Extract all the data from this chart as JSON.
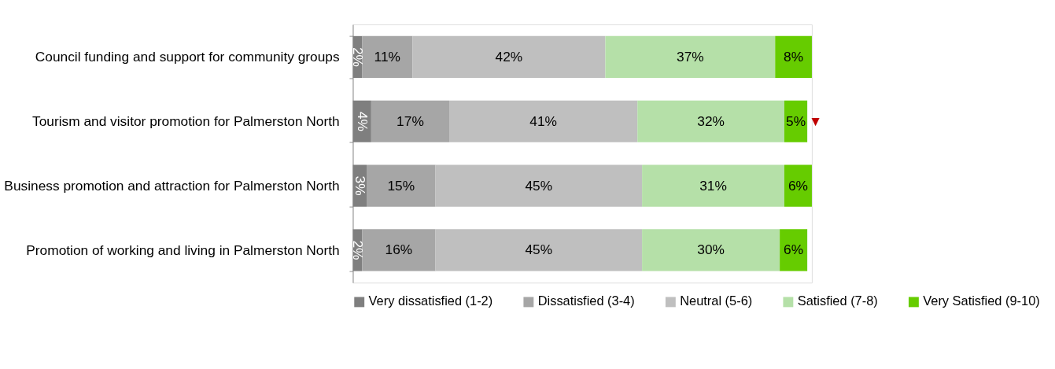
{
  "chart_data": {
    "type": "bar",
    "orientation": "horizontal",
    "stacked": true,
    "legend": "bottom",
    "grid": false,
    "tick_labels": "y",
    "categories": [
      "Council funding and support for community groups",
      "Tourism and visitor promotion for Palmerston North",
      "Business promotion and attraction for Palmerston North",
      "Promotion of working and living in Palmerston North"
    ],
    "series": [
      {
        "name": "Very dissatisfied (1-2)",
        "color": "#7f7f7f",
        "values": [
          2,
          4,
          3,
          2
        ],
        "value_labels": [
          "2%",
          "4%",
          "3%",
          "2%"
        ]
      },
      {
        "name": "Dissatisfied (3-4)",
        "color": "#a6a6a6",
        "values": [
          11,
          17,
          15,
          16
        ],
        "value_labels": [
          "11%",
          "17%",
          "15%",
          "16%"
        ]
      },
      {
        "name": "Neutral (5-6)",
        "color": "#bfbfbf",
        "values": [
          42,
          41,
          45,
          45
        ],
        "value_labels": [
          "42%",
          "41%",
          "45%",
          "45%"
        ]
      },
      {
        "name": "Satisfied (7-8)",
        "color": "#b5e0a8",
        "values": [
          37,
          32,
          31,
          30
        ],
        "value_labels": [
          "37%",
          "32%",
          "31%",
          "30%"
        ]
      },
      {
        "name": "Very Satisfied (9-10)",
        "color": "#66cc00",
        "values": [
          8,
          5,
          6,
          6
        ],
        "value_labels": [
          "8%",
          "5%",
          "6%",
          "6%"
        ]
      }
    ],
    "annotations": [
      {
        "text": "▼",
        "x": 99,
        "y": "Tourism and visitor promotion for Palmerston North"
      }
    ]
  }
}
